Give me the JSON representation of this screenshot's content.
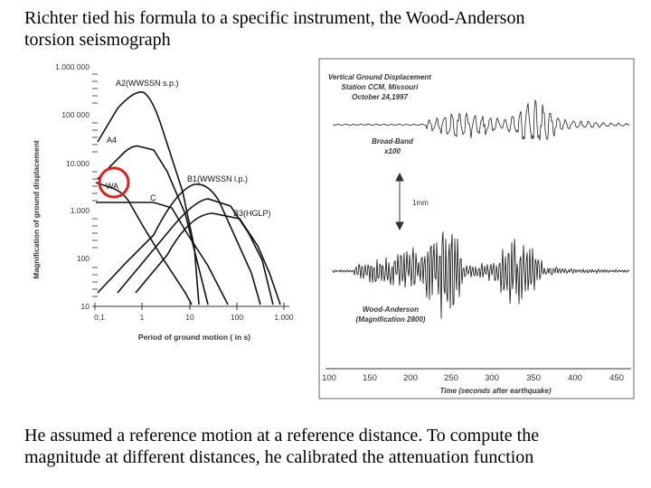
{
  "slide": {
    "top_text_line1": "Richter tied his formula to a specific instrument, the Wood-Anderson",
    "top_text_line2": "torsion seismograph",
    "bottom_text_line1": "He assumed a reference motion at a reference distance. To compute the",
    "bottom_text_line2": "magnitude at different distances, he calibrated the attenuation function"
  },
  "response_figure": {
    "ylabel": "Magnification of ground displacement",
    "xlabel": "Period of ground motion (  in s)",
    "y_ticks": [
      "1.000 000",
      "100 000",
      "10.000",
      "1.000",
      "100",
      "10"
    ],
    "x_ticks": [
      "0,1",
      "1",
      "10",
      "100",
      "1.000"
    ],
    "curve_labels": {
      "a2": "A2(WWSSN s.p.)",
      "a4": "A4",
      "wa": "WA",
      "c": "C",
      "b1": "B1(WWSSN l.p.)",
      "b3": "B3(HGLP)"
    },
    "highlight_color": "#e0201c"
  },
  "seismogram_figure": {
    "title_line1": "Vertical Ground Displacement",
    "title_line2": "Station CCM, Missouri",
    "title_line3": "October 24,1997",
    "bb_label_line1": "Broad-Band",
    "bb_label_line2": "x100",
    "scale_label": "1mm",
    "wa_label_line1": "Wood-Anderson",
    "wa_label_line2": "(Magnification 2800)",
    "x_ticks": [
      "100",
      "150",
      "200",
      "250",
      "300",
      "350",
      "400",
      "450"
    ],
    "xlabel": "Time (seconds after earthquake)"
  }
}
